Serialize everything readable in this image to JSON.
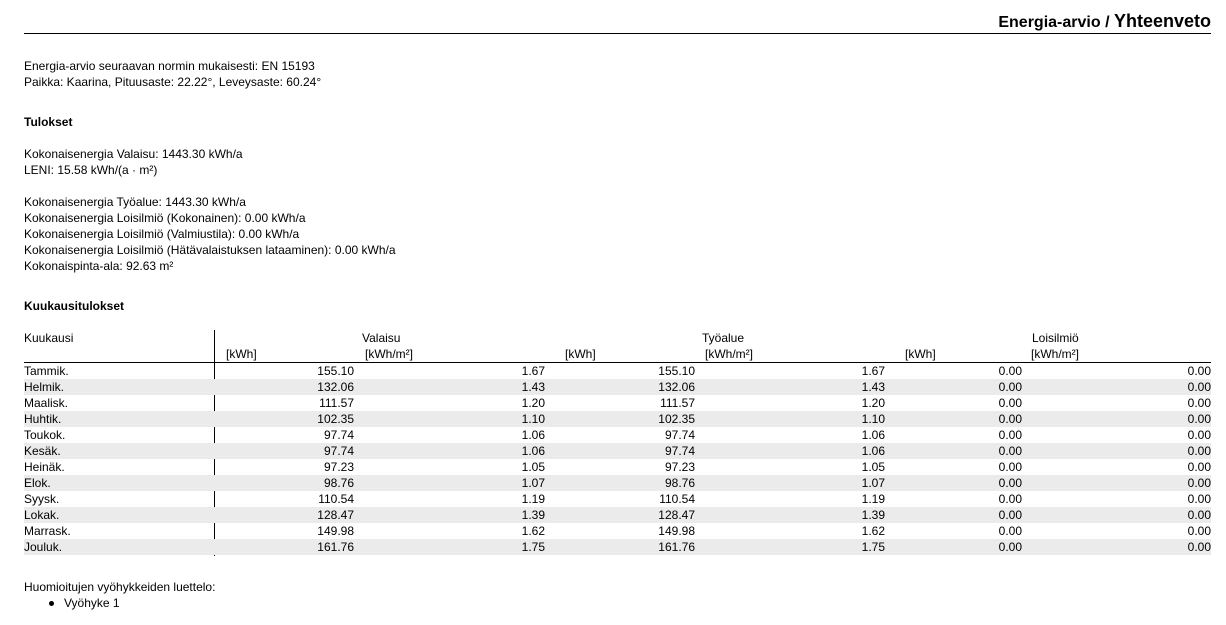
{
  "header": {
    "breadcrumb": "Energia-arvio",
    "separator": "/",
    "current": "Yhteenveto"
  },
  "intro": {
    "norm_line": "Energia-arvio seuraavan normin mukaisesti: EN 15193",
    "place_line": "Paikka: Kaarina, Pituusaste: 22.22°, Leveysaste: 60.24°"
  },
  "results": {
    "heading": "Tulokset",
    "total_lighting": "Kokonaisenergia Valaisu: 1443.30 kWh/a",
    "leni": "LENI: 15.58 kWh/(a · m²)",
    "total_workarea": "Kokonaisenergia Työalue: 1443.30 kWh/a",
    "parasitic_total": "Kokonaisenergia Loisilmiö (Kokonainen): 0.00 kWh/a",
    "parasitic_standby": "Kokonaisenergia Loisilmiö (Valmiustila): 0.00 kWh/a",
    "parasitic_emergency": "Kokonaisenergia Loisilmiö (Hätävalaistuksen lataaminen): 0.00 kWh/a",
    "total_area": "Kokonaispinta-ala: 92.63 m²"
  },
  "monthly": {
    "heading": "Kuukausitulokset",
    "col_month": "Kuukausi",
    "groups": [
      "Valaisu",
      "Työalue",
      "Loisilmiö"
    ],
    "unit_kwh": "[kWh]",
    "unit_kwh_m2": "[kWh/m²]",
    "rows": [
      {
        "month": "Tammik.",
        "v_kwh": "155.10",
        "v_m2": "1.67",
        "t_kwh": "155.10",
        "t_m2": "1.67",
        "l_kwh": "0.00",
        "l_m2": "0.00"
      },
      {
        "month": "Helmik.",
        "v_kwh": "132.06",
        "v_m2": "1.43",
        "t_kwh": "132.06",
        "t_m2": "1.43",
        "l_kwh": "0.00",
        "l_m2": "0.00"
      },
      {
        "month": "Maalisk.",
        "v_kwh": "111.57",
        "v_m2": "1.20",
        "t_kwh": "111.57",
        "t_m2": "1.20",
        "l_kwh": "0.00",
        "l_m2": "0.00"
      },
      {
        "month": "Huhtik.",
        "v_kwh": "102.35",
        "v_m2": "1.10",
        "t_kwh": "102.35",
        "t_m2": "1.10",
        "l_kwh": "0.00",
        "l_m2": "0.00"
      },
      {
        "month": "Toukok.",
        "v_kwh": "97.74",
        "v_m2": "1.06",
        "t_kwh": "97.74",
        "t_m2": "1.06",
        "l_kwh": "0.00",
        "l_m2": "0.00"
      },
      {
        "month": "Kesäk.",
        "v_kwh": "97.74",
        "v_m2": "1.06",
        "t_kwh": "97.74",
        "t_m2": "1.06",
        "l_kwh": "0.00",
        "l_m2": "0.00"
      },
      {
        "month": "Heinäk.",
        "v_kwh": "97.23",
        "v_m2": "1.05",
        "t_kwh": "97.23",
        "t_m2": "1.05",
        "l_kwh": "0.00",
        "l_m2": "0.00"
      },
      {
        "month": "Elok.",
        "v_kwh": "98.76",
        "v_m2": "1.07",
        "t_kwh": "98.76",
        "t_m2": "1.07",
        "l_kwh": "0.00",
        "l_m2": "0.00"
      },
      {
        "month": "Syysk.",
        "v_kwh": "110.54",
        "v_m2": "1.19",
        "t_kwh": "110.54",
        "t_m2": "1.19",
        "l_kwh": "0.00",
        "l_m2": "0.00"
      },
      {
        "month": "Lokak.",
        "v_kwh": "128.47",
        "v_m2": "1.39",
        "t_kwh": "128.47",
        "t_m2": "1.39",
        "l_kwh": "0.00",
        "l_m2": "0.00"
      },
      {
        "month": "Marrask.",
        "v_kwh": "149.98",
        "v_m2": "1.62",
        "t_kwh": "149.98",
        "t_m2": "1.62",
        "l_kwh": "0.00",
        "l_m2": "0.00"
      },
      {
        "month": "Jouluk.",
        "v_kwh": "161.76",
        "v_m2": "1.75",
        "t_kwh": "161.76",
        "t_m2": "1.75",
        "l_kwh": "0.00",
        "l_m2": "0.00"
      }
    ]
  },
  "zones": {
    "heading": "Huomioitujen vyöhykkeiden luettelo:",
    "items": [
      "Vyöhyke 1"
    ]
  }
}
